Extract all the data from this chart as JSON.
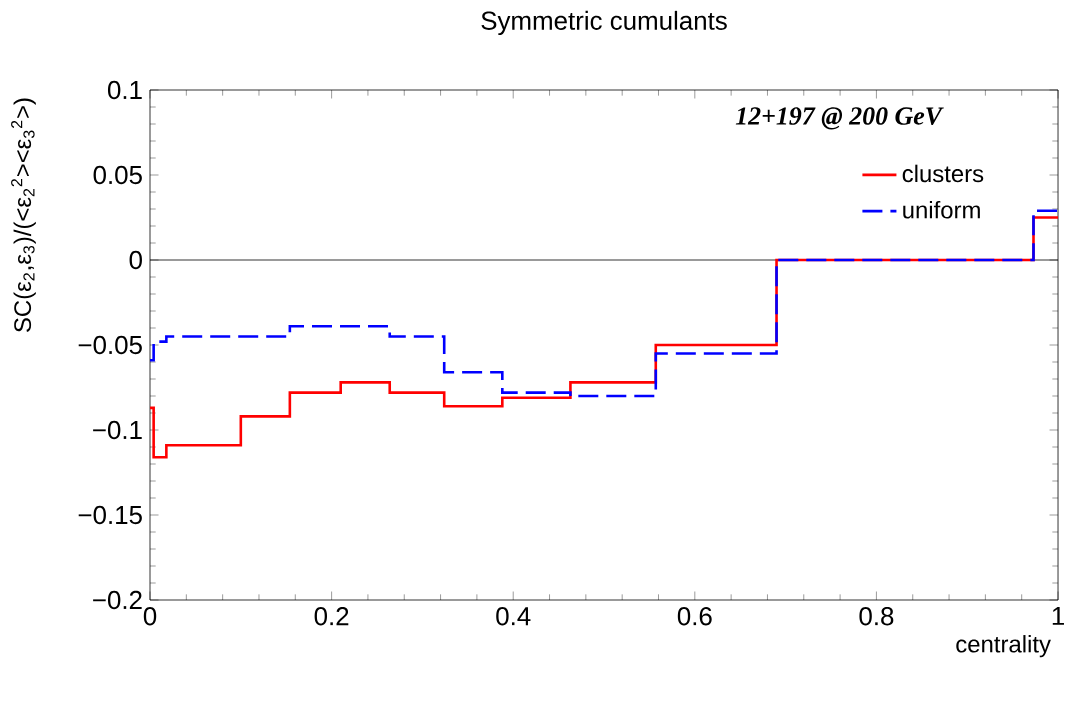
{
  "chart_data": {
    "type": "histogram",
    "title": "Symmetric cumulants",
    "xlabel": "centrality",
    "ylabel": "SC(ε$_{2}$,ε$_{3}$)/(<ε$_{2}$$^{2}$><ε$_{3}$$^{2}$>)",
    "bins": [
      0,
      0.004,
      0.018,
      0.1,
      0.154,
      0.21,
      0.264,
      0.324,
      0.388,
      0.463,
      0.557,
      0.69,
      0.973,
      1
    ],
    "series": [
      {
        "name": "clusters",
        "color": "#ff0000",
        "line_style": "solid",
        "values": [
          -0.087,
          -0.116,
          -0.109,
          -0.092,
          -0.078,
          -0.072,
          -0.078,
          -0.086,
          -0.081,
          -0.072,
          -0.05,
          0,
          0.025
        ]
      },
      {
        "name": "uniform",
        "color": "#0000ff",
        "line_style": "dashed",
        "values": [
          -0.059,
          -0.048,
          -0.045,
          -0.045,
          -0.039,
          -0.039,
          -0.045,
          -0.066,
          -0.078,
          -0.08,
          -0.055,
          0,
          0.029
        ]
      }
    ],
    "xlim": [
      0,
      1
    ],
    "ylim": [
      -0.2,
      0.1
    ],
    "xticks": [
      0,
      0.2,
      0.4,
      0.6,
      0.8,
      1
    ],
    "yticks": [
      {
        "value": -0.2,
        "label": "−0.2"
      },
      {
        "value": -0.15,
        "label": "−0.15"
      },
      {
        "value": -0.1,
        "label": "−0.1"
      },
      {
        "value": -0.05,
        "label": "−0.05"
      },
      0,
      0.05,
      0.1
    ],
    "ref_lines": [
      {
        "axis": "y",
        "value": 0,
        "color": "#000000"
      }
    ],
    "annotations": [
      "12+197 @ 200 GeV"
    ],
    "legend": "top right"
  }
}
